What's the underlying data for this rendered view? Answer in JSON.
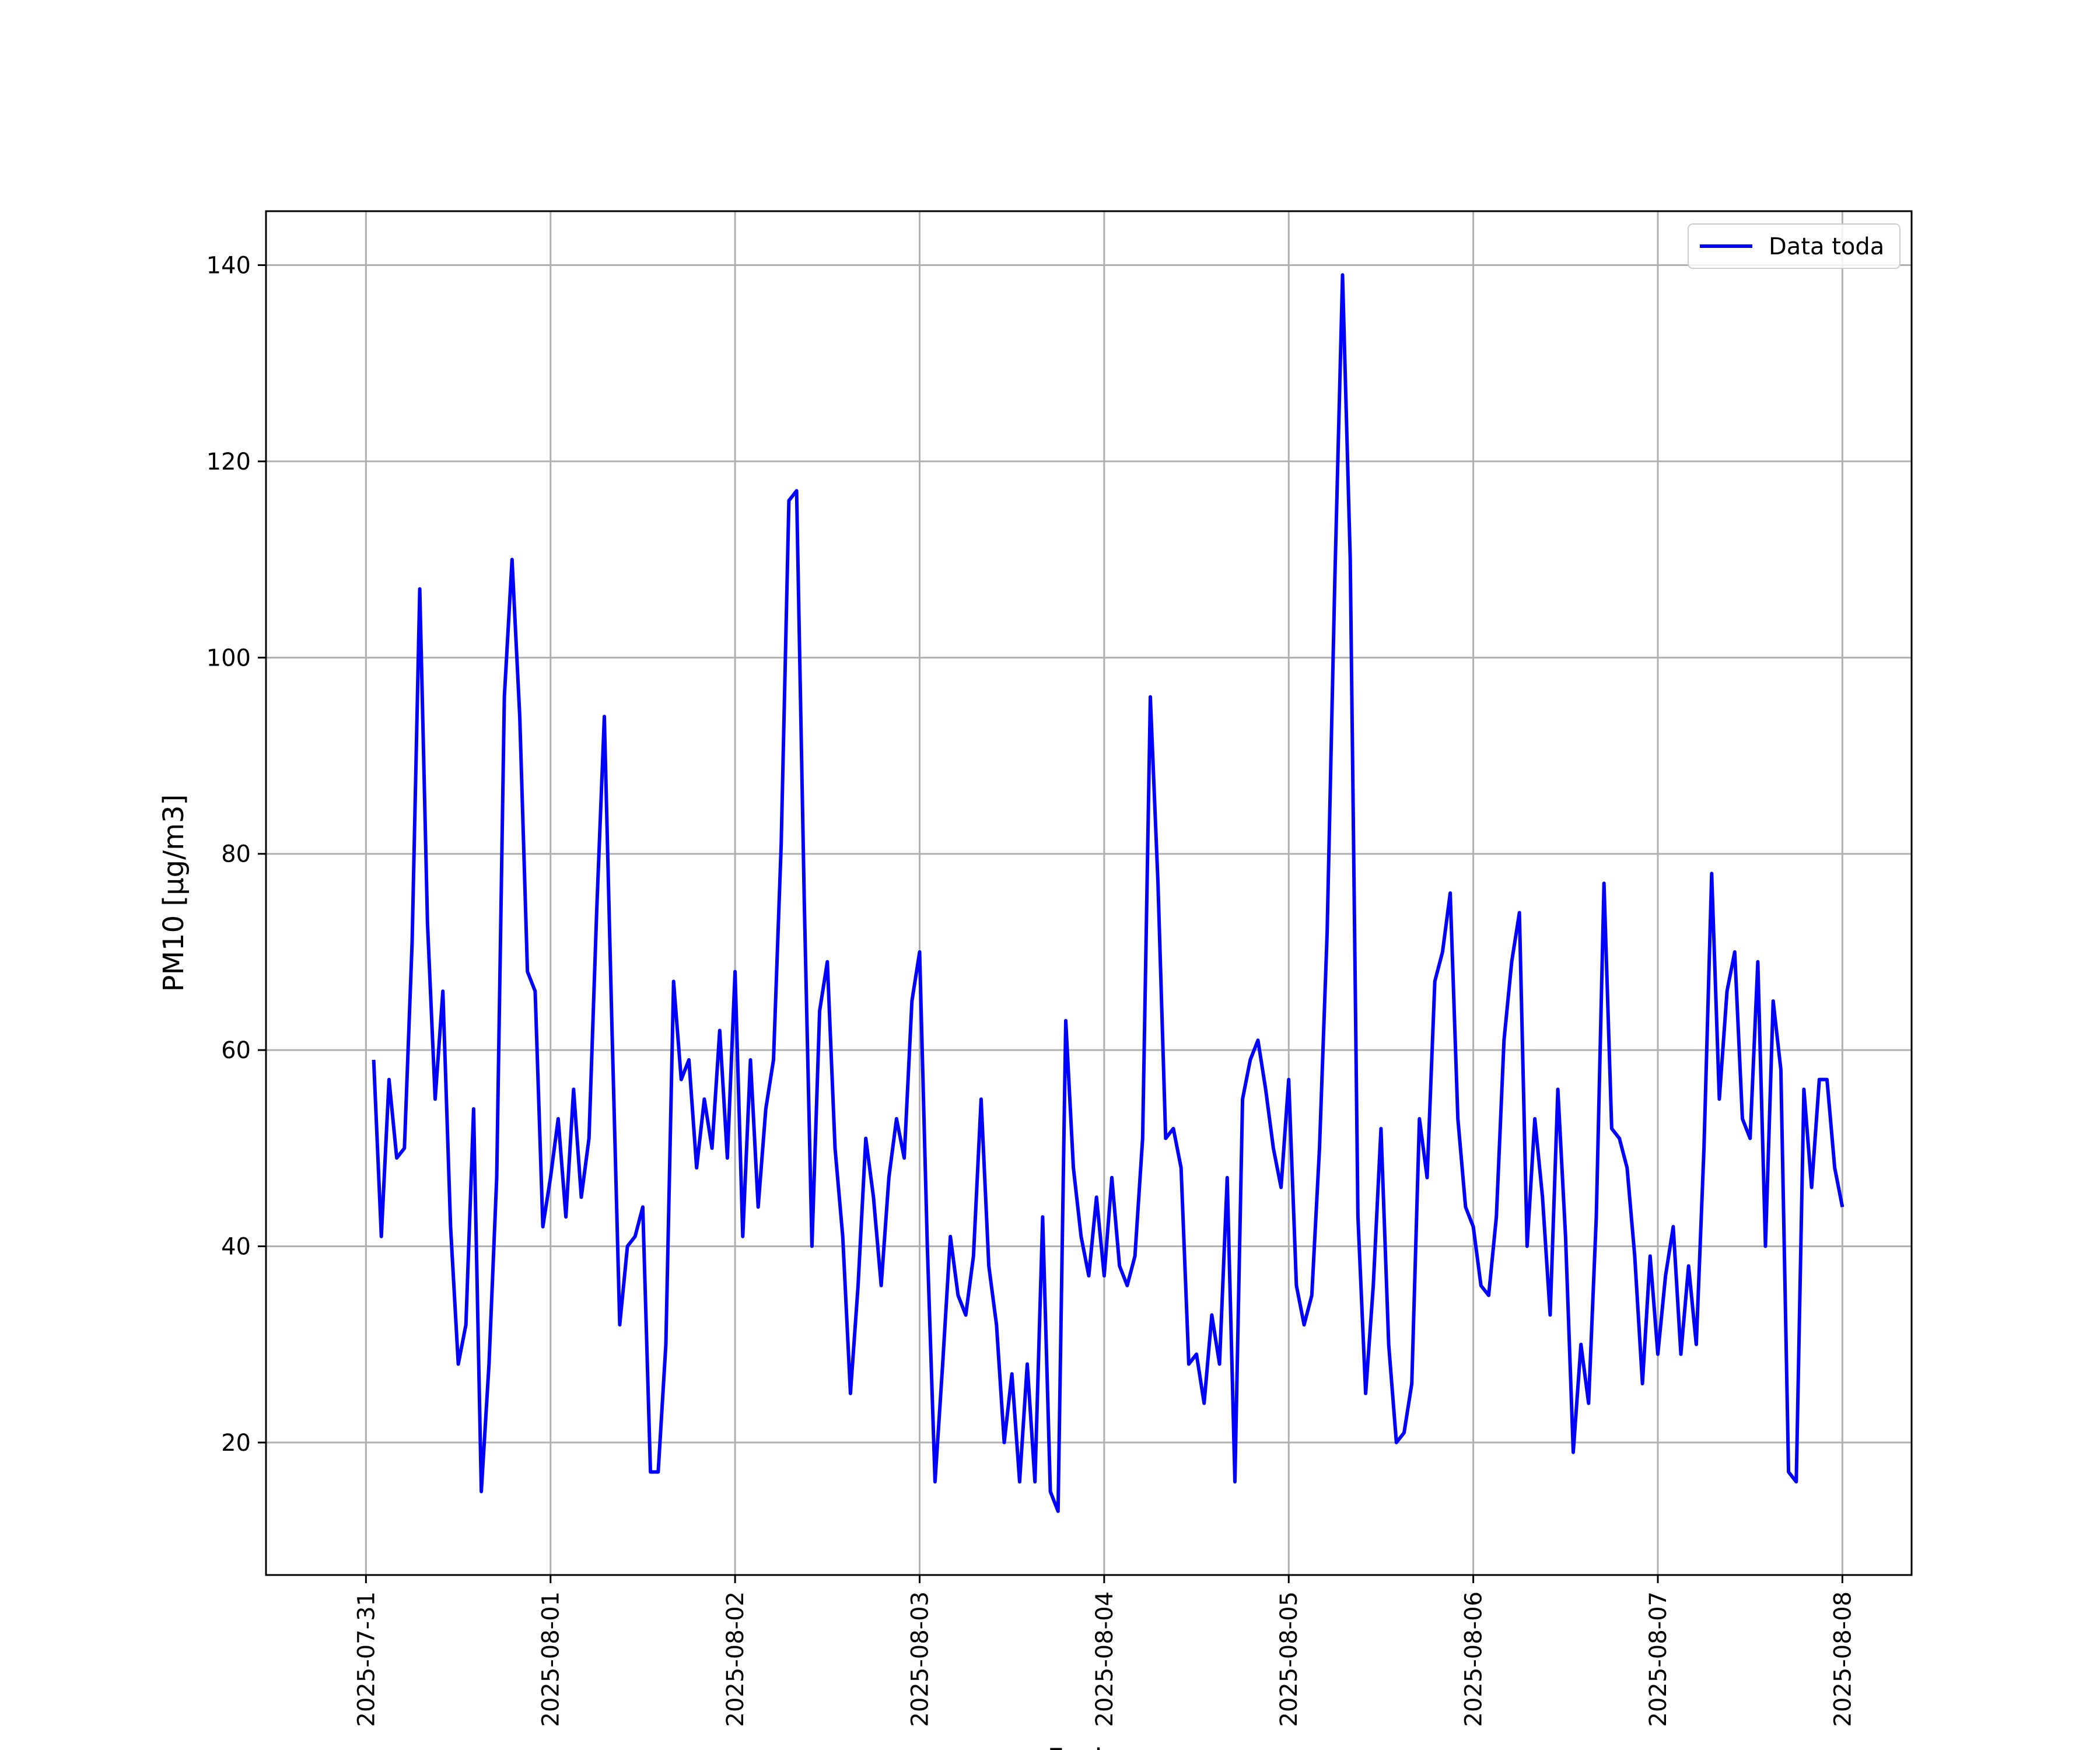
{
  "chart_data": {
    "type": "line",
    "title": "",
    "xlabel": "Fecha",
    "ylabel": "PM10 [μg/m3]",
    "x_tick_labels": [
      "2025-07-31",
      "2025-08-01",
      "2025-08-02",
      "2025-08-03",
      "2025-08-04",
      "2025-08-05",
      "2025-08-06",
      "2025-08-07",
      "2025-08-08"
    ],
    "y_ticks": [
      20,
      40,
      60,
      80,
      100,
      120,
      140
    ],
    "xlim": [
      "2025-07-30 11:00",
      "2025-08-08 09:00"
    ],
    "ylim": [
      6.5,
      145.5
    ],
    "grid": true,
    "legend_position": "top-right",
    "line_color": "#0000ff",
    "series": [
      {
        "name": "Data toda",
        "x": [
          "2025-07-31 01:00",
          "2025-07-31 02:00",
          "2025-07-31 03:00",
          "2025-07-31 04:00",
          "2025-07-31 05:00",
          "2025-07-31 06:00",
          "2025-07-31 07:00",
          "2025-07-31 08:00",
          "2025-07-31 09:00",
          "2025-07-31 10:00",
          "2025-07-31 11:00",
          "2025-07-31 12:00",
          "2025-07-31 13:00",
          "2025-07-31 14:00",
          "2025-07-31 15:00",
          "2025-07-31 16:00",
          "2025-07-31 17:00",
          "2025-07-31 18:00",
          "2025-07-31 19:00",
          "2025-07-31 20:00",
          "2025-07-31 21:00",
          "2025-07-31 22:00",
          "2025-07-31 23:00",
          "2025-08-01 00:00",
          "2025-08-01 01:00",
          "2025-08-01 02:00",
          "2025-08-01 03:00",
          "2025-08-01 04:00",
          "2025-08-01 05:00",
          "2025-08-01 06:00",
          "2025-08-01 07:00",
          "2025-08-01 08:00",
          "2025-08-01 09:00",
          "2025-08-01 10:00",
          "2025-08-01 11:00",
          "2025-08-01 12:00",
          "2025-08-01 13:00",
          "2025-08-01 14:00",
          "2025-08-01 15:00",
          "2025-08-01 16:00",
          "2025-08-01 17:00",
          "2025-08-01 18:00",
          "2025-08-01 19:00",
          "2025-08-01 20:00",
          "2025-08-01 21:00",
          "2025-08-01 22:00",
          "2025-08-01 23:00",
          "2025-08-02 00:00",
          "2025-08-02 01:00",
          "2025-08-02 02:00",
          "2025-08-02 03:00",
          "2025-08-02 04:00",
          "2025-08-02 05:00",
          "2025-08-02 06:00",
          "2025-08-02 07:00",
          "2025-08-02 08:00",
          "2025-08-02 09:00",
          "2025-08-02 10:00",
          "2025-08-02 11:00",
          "2025-08-02 12:00",
          "2025-08-02 13:00",
          "2025-08-02 14:00",
          "2025-08-02 15:00",
          "2025-08-02 16:00",
          "2025-08-02 17:00",
          "2025-08-02 18:00",
          "2025-08-02 19:00",
          "2025-08-02 20:00",
          "2025-08-02 21:00",
          "2025-08-02 22:00",
          "2025-08-02 23:00",
          "2025-08-03 00:00",
          "2025-08-03 01:00",
          "2025-08-03 02:00",
          "2025-08-03 03:00",
          "2025-08-03 04:00",
          "2025-08-03 05:00",
          "2025-08-03 06:00",
          "2025-08-03 07:00",
          "2025-08-03 08:00",
          "2025-08-03 09:00",
          "2025-08-03 10:00",
          "2025-08-03 11:00",
          "2025-08-03 12:00",
          "2025-08-03 13:00",
          "2025-08-03 14:00",
          "2025-08-03 15:00",
          "2025-08-03 16:00",
          "2025-08-03 17:00",
          "2025-08-03 18:00",
          "2025-08-03 19:00",
          "2025-08-03 20:00",
          "2025-08-03 21:00",
          "2025-08-03 22:00",
          "2025-08-03 23:00",
          "2025-08-04 00:00",
          "2025-08-04 01:00",
          "2025-08-04 02:00",
          "2025-08-04 03:00",
          "2025-08-04 04:00",
          "2025-08-04 05:00",
          "2025-08-04 06:00",
          "2025-08-04 07:00",
          "2025-08-04 08:00",
          "2025-08-04 09:00",
          "2025-08-04 10:00",
          "2025-08-04 11:00",
          "2025-08-04 12:00",
          "2025-08-04 13:00",
          "2025-08-04 14:00",
          "2025-08-04 15:00",
          "2025-08-04 16:00",
          "2025-08-04 17:00",
          "2025-08-04 18:00",
          "2025-08-04 19:00",
          "2025-08-04 20:00",
          "2025-08-04 21:00",
          "2025-08-04 22:00",
          "2025-08-04 23:00",
          "2025-08-05 00:00",
          "2025-08-05 01:00",
          "2025-08-05 02:00",
          "2025-08-05 03:00",
          "2025-08-05 04:00",
          "2025-08-05 05:00",
          "2025-08-05 06:00",
          "2025-08-05 07:00",
          "2025-08-05 08:00",
          "2025-08-05 09:00",
          "2025-08-05 10:00",
          "2025-08-05 11:00",
          "2025-08-05 12:00",
          "2025-08-05 13:00",
          "2025-08-05 14:00",
          "2025-08-05 15:00",
          "2025-08-05 16:00",
          "2025-08-05 17:00",
          "2025-08-05 18:00",
          "2025-08-05 19:00",
          "2025-08-05 20:00",
          "2025-08-05 21:00",
          "2025-08-05 22:00",
          "2025-08-05 23:00",
          "2025-08-06 00:00",
          "2025-08-06 01:00",
          "2025-08-06 02:00",
          "2025-08-06 03:00",
          "2025-08-06 04:00",
          "2025-08-06 05:00",
          "2025-08-06 06:00",
          "2025-08-06 07:00",
          "2025-08-06 08:00",
          "2025-08-06 09:00",
          "2025-08-06 10:00",
          "2025-08-06 11:00",
          "2025-08-06 12:00",
          "2025-08-06 13:00",
          "2025-08-06 14:00",
          "2025-08-06 15:00",
          "2025-08-06 16:00",
          "2025-08-06 17:00",
          "2025-08-06 18:00",
          "2025-08-06 19:00",
          "2025-08-06 20:00",
          "2025-08-06 21:00",
          "2025-08-06 22:00",
          "2025-08-06 23:00",
          "2025-08-07 00:00",
          "2025-08-07 01:00",
          "2025-08-07 02:00",
          "2025-08-07 03:00",
          "2025-08-07 04:00",
          "2025-08-07 05:00",
          "2025-08-07 06:00",
          "2025-08-07 07:00",
          "2025-08-07 08:00",
          "2025-08-07 09:00",
          "2025-08-07 10:00",
          "2025-08-07 11:00",
          "2025-08-07 12:00",
          "2025-08-07 13:00",
          "2025-08-07 14:00",
          "2025-08-07 15:00",
          "2025-08-07 16:00",
          "2025-08-07 17:00",
          "2025-08-07 18:00",
          "2025-08-07 19:00",
          "2025-08-07 20:00",
          "2025-08-07 21:00",
          "2025-08-07 22:00",
          "2025-08-07 23:00",
          "2025-08-08 00:00"
        ],
        "values": [
          59,
          41,
          57,
          49,
          50,
          71,
          107,
          73,
          55,
          66,
          42,
          28,
          32,
          54,
          15,
          28,
          47,
          96,
          110,
          94,
          68,
          66,
          42,
          47,
          53,
          43,
          56,
          45,
          51,
          74,
          94,
          62,
          32,
          40,
          41,
          44,
          17,
          17,
          30,
          67,
          57,
          59,
          48,
          55,
          50,
          62,
          49,
          68,
          41,
          59,
          44,
          54,
          59,
          81,
          116,
          117,
          75,
          40,
          64,
          69,
          50,
          41,
          25,
          36,
          51,
          45,
          36,
          47,
          53,
          49,
          65,
          70,
          40,
          16,
          28,
          41,
          35,
          33,
          39,
          55,
          38,
          32,
          20,
          27,
          16,
          28,
          16,
          43,
          15,
          13,
          63,
          48,
          41,
          37,
          45,
          37,
          47,
          38,
          36,
          39,
          51,
          96,
          77,
          51,
          52,
          48,
          28,
          29,
          24,
          33,
          28,
          47,
          16,
          55,
          59,
          61,
          56,
          50,
          46,
          57,
          36,
          32,
          35,
          50,
          72,
          108,
          139,
          110,
          43,
          25,
          36,
          52,
          30,
          20,
          21,
          26,
          53,
          47,
          67,
          70,
          76,
          53,
          44,
          42,
          36,
          35,
          43,
          61,
          69,
          74,
          40,
          53,
          45,
          33,
          56,
          41,
          19,
          30,
          24,
          43,
          77,
          52,
          51,
          48,
          39,
          26,
          39,
          29,
          37,
          42,
          29,
          38,
          30,
          50,
          78,
          55,
          66,
          70,
          53,
          51,
          69,
          40,
          65,
          58,
          17,
          16,
          56,
          46,
          57,
          57,
          48,
          44
        ]
      }
    ]
  }
}
